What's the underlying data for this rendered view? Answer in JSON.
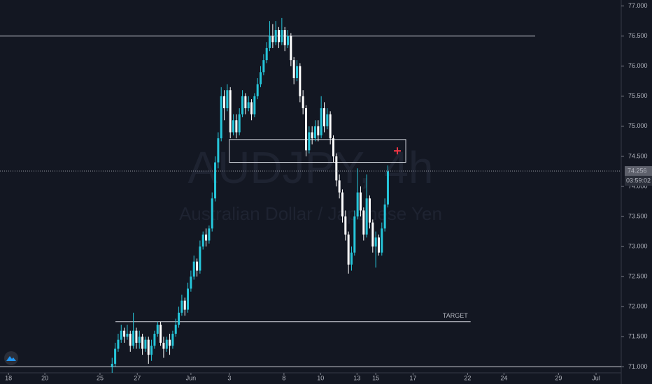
{
  "chart_data": {
    "type": "candlestick",
    "watermark_title": "AUDJPY, 4h",
    "watermark_subtitle": "Australian Dollar / Japanese Yen",
    "up_color": "#26c6da",
    "down_color": "#ffffff",
    "xlim": [
      0,
      205
    ],
    "ylim": [
      70.9,
      77.1
    ],
    "yticks": [
      {
        "value": 71,
        "label": "71.000"
      },
      {
        "value": 71.5,
        "label": "71.500"
      },
      {
        "value": 72,
        "label": "72.000"
      },
      {
        "value": 72.5,
        "label": "72.500"
      },
      {
        "value": 73,
        "label": "73.000"
      },
      {
        "value": 73.5,
        "label": "73.500"
      },
      {
        "value": 74,
        "label": "74.000"
      },
      {
        "value": 74.5,
        "label": "74.500"
      },
      {
        "value": 75,
        "label": "75.000"
      },
      {
        "value": 75.5,
        "label": "75.500"
      },
      {
        "value": 76,
        "label": "76.000"
      },
      {
        "value": 76.5,
        "label": "76.500"
      },
      {
        "value": 77,
        "label": "77.000"
      }
    ],
    "xticks": [
      {
        "value": 2.8,
        "label": "18"
      },
      {
        "value": 14.8,
        "label": "20"
      },
      {
        "value": 33,
        "label": "25"
      },
      {
        "value": 45.3,
        "label": "27"
      },
      {
        "value": 63,
        "label": "Jun"
      },
      {
        "value": 75.7,
        "label": "3"
      },
      {
        "value": 93.7,
        "label": "8"
      },
      {
        "value": 105.8,
        "label": "10"
      },
      {
        "value": 117.8,
        "label": "13"
      },
      {
        "value": 124,
        "label": "15"
      },
      {
        "value": 136.3,
        "label": "17"
      },
      {
        "value": 154.3,
        "label": "22"
      },
      {
        "value": 166.3,
        "label": "24"
      },
      {
        "value": 184.3,
        "label": "29"
      },
      {
        "value": 196.7,
        "label": "Jul"
      }
    ],
    "x": [
      37,
      38,
      39,
      40,
      41,
      42,
      43,
      44,
      45,
      46,
      47,
      48,
      49,
      50,
      51,
      52,
      53,
      54,
      55,
      56,
      57,
      58,
      59,
      60,
      61,
      62,
      63,
      64,
      65,
      66,
      67,
      68,
      69,
      70,
      71,
      72,
      73,
      74,
      75,
      76,
      77,
      78,
      79,
      80,
      81,
      82,
      83,
      84,
      85,
      86,
      87,
      88,
      89,
      90,
      91,
      92,
      93,
      94,
      95,
      96,
      97,
      98,
      99,
      100,
      101,
      102,
      103,
      104,
      105,
      106,
      107,
      108,
      109,
      110,
      111,
      112,
      113,
      114,
      115,
      116,
      117,
      118,
      119,
      120,
      121,
      122,
      123,
      124,
      125,
      126,
      127,
      128
    ],
    "open": [
      71.0,
      71.05,
      71.3,
      71.45,
      71.6,
      71.5,
      71.55,
      71.35,
      71.6,
      71.4,
      71.5,
      71.3,
      71.45,
      71.2,
      71.35,
      71.55,
      71.7,
      71.4,
      71.3,
      71.45,
      71.35,
      71.55,
      71.7,
      71.9,
      72.1,
      71.95,
      72.3,
      72.5,
      72.75,
      72.6,
      73.0,
      73.2,
      73.1,
      73.3,
      73.8,
      74.4,
      74.8,
      75.5,
      75.3,
      75.6,
      74.9,
      75.1,
      74.9,
      75.2,
      75.5,
      75.3,
      75.4,
      75.2,
      75.5,
      75.7,
      75.9,
      76.1,
      76.3,
      76.5,
      76.4,
      76.6,
      76.4,
      76.6,
      76.35,
      76.5,
      76.1,
      75.8,
      76.0,
      75.5,
      75.3,
      74.6,
      74.9,
      74.8,
      75.0,
      74.85,
      75.3,
      75.0,
      75.2,
      74.8,
      74.5,
      74.1,
      73.9,
      73.5,
      73.2,
      72.7,
      72.9,
      73.5,
      73.9,
      73.6,
      73.2,
      73.8,
      73.4,
      73.0,
      73.15,
      72.9,
      73.3,
      73.7
    ],
    "high": [
      71.15,
      71.4,
      71.55,
      71.7,
      71.65,
      71.7,
      71.6,
      71.9,
      71.65,
      71.6,
      71.55,
      71.5,
      71.5,
      71.45,
      71.6,
      71.75,
      71.75,
      71.5,
      71.5,
      71.55,
      71.6,
      71.8,
      72.0,
      72.2,
      72.15,
      72.4,
      72.6,
      72.85,
      72.8,
      73.1,
      73.25,
      73.3,
      73.35,
      73.9,
      74.5,
      74.9,
      75.65,
      75.6,
      75.7,
      75.65,
      75.2,
      75.2,
      75.3,
      75.6,
      75.55,
      75.5,
      75.45,
      75.55,
      75.8,
      76.0,
      76.2,
      76.4,
      76.75,
      76.7,
      76.75,
      76.65,
      76.8,
      76.65,
      76.6,
      76.55,
      76.15,
      76.1,
      76.05,
      75.6,
      75.35,
      75.0,
      75.0,
      75.1,
      75.1,
      75.5,
      75.4,
      75.3,
      75.25,
      74.85,
      74.55,
      74.2,
      73.95,
      73.6,
      73.25,
      73.0,
      73.6,
      74.3,
      74.0,
      73.65,
      74.2,
      73.85,
      73.45,
      73.25,
      73.2,
      73.4,
      73.8,
      74.35
    ],
    "low": [
      70.9,
      71.0,
      71.25,
      71.4,
      71.4,
      71.45,
      71.25,
      71.3,
      71.3,
      71.3,
      71.2,
      71.25,
      71.05,
      71.1,
      71.3,
      71.5,
      71.35,
      71.15,
      71.25,
      71.2,
      71.3,
      71.5,
      71.65,
      71.85,
      71.85,
      71.9,
      72.25,
      72.45,
      72.5,
      72.55,
      72.95,
      73.0,
      73.05,
      73.25,
      73.75,
      74.3,
      74.75,
      75.1,
      75.25,
      74.8,
      74.85,
      74.8,
      74.85,
      75.15,
      75.2,
      75.25,
      75.1,
      75.15,
      75.45,
      75.65,
      75.85,
      76.05,
      76.25,
      76.3,
      76.35,
      76.3,
      76.35,
      76.25,
      76.3,
      76.0,
      75.7,
      75.75,
      75.4,
      75.2,
      74.5,
      74.55,
      74.7,
      74.75,
      74.75,
      74.8,
      74.9,
      74.95,
      74.7,
      74.4,
      74.0,
      73.8,
      73.4,
      73.1,
      72.55,
      72.6,
      72.85,
      73.45,
      73.5,
      73.1,
      73.15,
      73.3,
      72.9,
      72.65,
      72.85,
      72.85,
      73.25,
      73.65
    ],
    "close": [
      71.05,
      71.3,
      71.45,
      71.6,
      71.5,
      71.55,
      71.35,
      71.6,
      71.4,
      71.5,
      71.3,
      71.45,
      71.2,
      71.35,
      71.55,
      71.7,
      71.4,
      71.3,
      71.45,
      71.35,
      71.55,
      71.7,
      71.9,
      72.1,
      71.95,
      72.3,
      72.5,
      72.75,
      72.6,
      73.0,
      73.2,
      73.1,
      73.3,
      73.8,
      74.4,
      74.8,
      75.5,
      75.3,
      75.6,
      74.9,
      75.1,
      74.9,
      75.2,
      75.5,
      75.3,
      75.4,
      75.2,
      75.5,
      75.7,
      75.9,
      76.1,
      76.3,
      76.5,
      76.4,
      76.6,
      76.4,
      76.6,
      76.35,
      76.5,
      76.1,
      75.8,
      76.0,
      75.5,
      75.3,
      74.6,
      74.9,
      74.8,
      75.0,
      74.85,
      75.3,
      75.0,
      75.2,
      74.8,
      74.5,
      74.1,
      73.9,
      73.5,
      73.2,
      72.7,
      72.9,
      73.5,
      73.9,
      73.6,
      73.2,
      73.8,
      73.4,
      73.0,
      73.15,
      72.9,
      73.3,
      73.7,
      74.25
    ],
    "resistance_level": 76.5,
    "resistance_xlim": [
      0,
      176.6
    ],
    "target_level": 71.75,
    "target_xlim": [
      38.1,
      155.3
    ],
    "target_label": "TARGET",
    "base_level": 71.0,
    "zone": [
      74.4,
      74.78
    ],
    "zone_xlim": [
      75.7,
      133.9
    ],
    "last_price": {
      "value": 74.256,
      "label": "74.256"
    },
    "countdown": "03:59:02"
  }
}
